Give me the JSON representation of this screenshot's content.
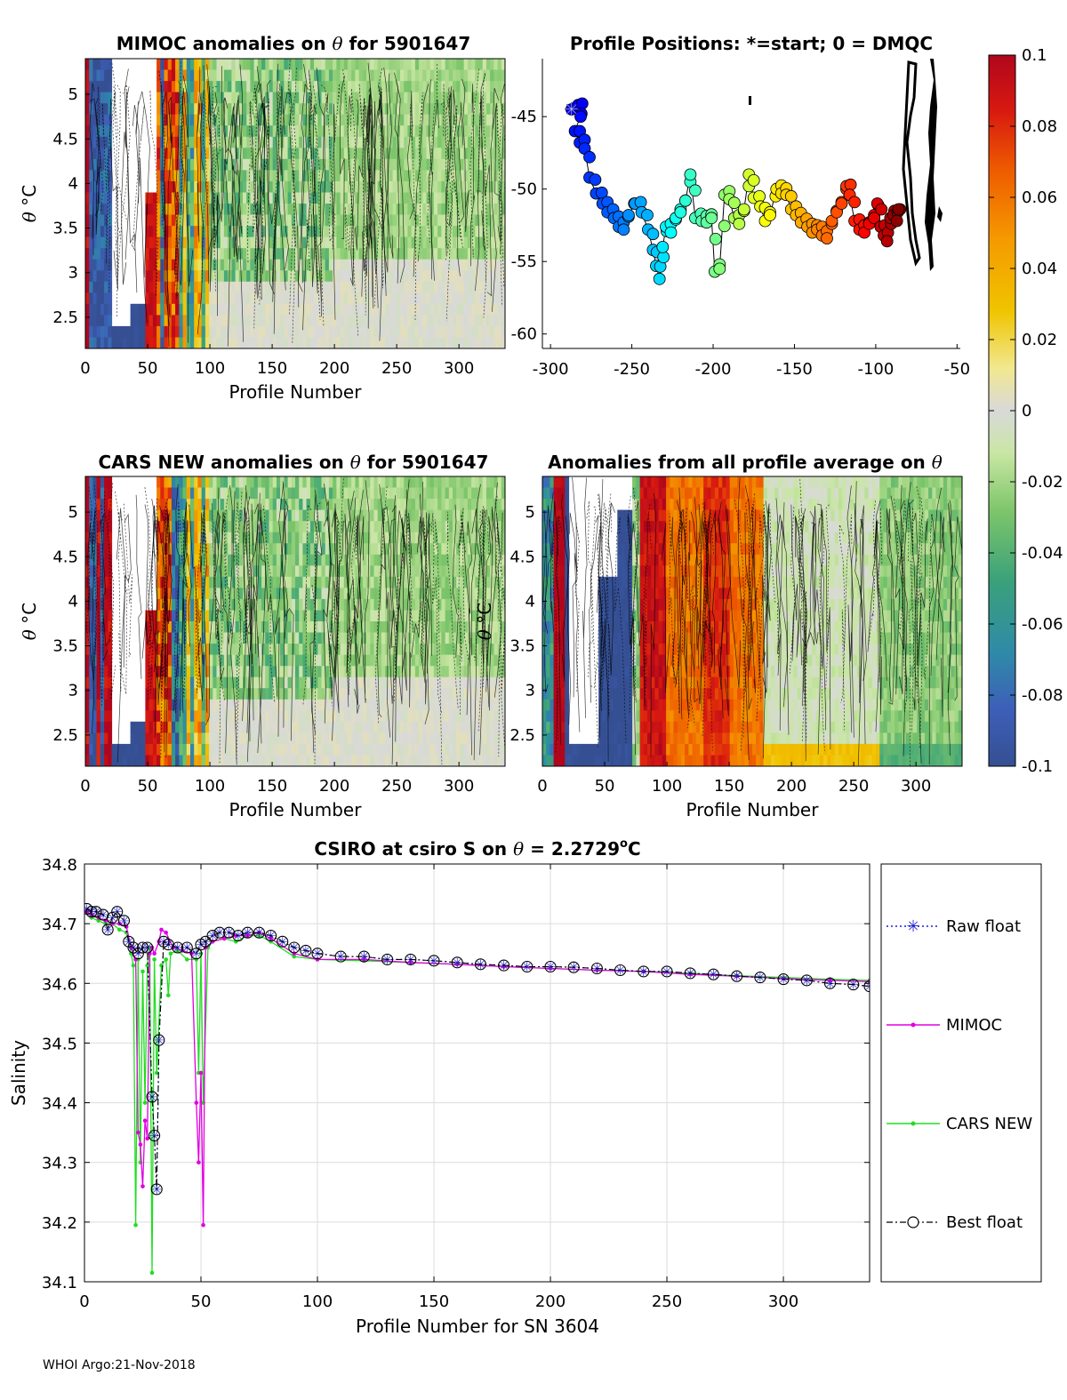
{
  "footer": "WHOI Argo:21-Nov-2018",
  "panels": {
    "mimoc": {
      "title_a": "MIMOC anomalies on ",
      "title_sym": "θ",
      "title_b": "  for 5901647",
      "ylabel_sym": "θ",
      "ylabel_unit": " °C",
      "xlabel": "Profile Number",
      "xticks": [
        "0",
        "50",
        "100",
        "150",
        "200",
        "250",
        "300"
      ],
      "yticks": [
        "5",
        "4.5",
        "4",
        "3.5",
        "3",
        "2.5"
      ]
    },
    "positions": {
      "title": "Profile Positions: *=start; 0 = DMQC",
      "xticks": [
        "-300",
        "-250",
        "-200",
        "-150",
        "-100",
        "-50"
      ],
      "yticks": [
        "-45",
        "-50",
        "-55",
        "-60"
      ]
    },
    "cars": {
      "title_a": "CARS NEW anomalies on ",
      "title_sym": "θ",
      "title_b": " for 5901647",
      "ylabel_sym": "θ",
      "ylabel_unit": " °C",
      "xlabel": "Profile Number",
      "xticks": [
        "0",
        "50",
        "100",
        "150",
        "200",
        "250",
        "300"
      ],
      "yticks": [
        "5",
        "4.5",
        "4",
        "3.5",
        "3",
        "2.5"
      ]
    },
    "allavg": {
      "title_a": "Anomalies from all profile average on ",
      "title_sym": "θ",
      "ylabel_sym": "θ",
      "ylabel_unit": " °C",
      "xlabel": "Profile Number",
      "xticks": [
        "0",
        "50",
        "100",
        "150",
        "200",
        "250",
        "300"
      ],
      "yticks": [
        "5",
        "4.5",
        "4",
        "3.5",
        "3",
        "2.5"
      ]
    },
    "colorbar": {
      "ticks": [
        "0.1",
        "0.08",
        "0.06",
        "0.04",
        "0.02",
        "0",
        "-0.02",
        "-0.04",
        "-0.06",
        "-0.08",
        "-0.1"
      ]
    },
    "salinity": {
      "title_a": "CSIRO at csiro S on ",
      "title_sym": "θ",
      "title_b": " = 2.2729",
      "title_sup": "o",
      "title_c": "C",
      "xlabel": "Profile Number for SN 3604",
      "ylabel": "Salinity",
      "xticks": [
        "0",
        "50",
        "100",
        "150",
        "200",
        "250",
        "300"
      ],
      "yticks": [
        "34.8",
        "34.7",
        "34.6",
        "34.5",
        "34.4",
        "34.3",
        "34.2",
        "34.1"
      ],
      "legend": [
        "Raw float",
        "MIMOC",
        "CARS NEW",
        "Best float"
      ]
    }
  },
  "chart_data": [
    {
      "type": "heatmap",
      "title": "MIMOC anomalies on θ for 5901647",
      "xlabel": "Profile Number",
      "ylabel": "θ °C",
      "xlim": [
        0,
        337
      ],
      "ylim": [
        2.15,
        5.4
      ],
      "color_range": [
        -0.1,
        0.1
      ],
      "note": "Theta-level temperature anomalies vs MIMOC climatology with black contours; strong positive/negative anomalies for profiles 0-80, near-zero to slightly negative after 100"
    },
    {
      "type": "scatter",
      "title": "Profile Positions: *=start; 0 = DMQC",
      "xlim": [
        -305,
        -48
      ],
      "ylim": [
        -61,
        -41
      ],
      "start": [
        -287,
        -44.5
      ],
      "positions": [
        [
          -287,
          -44.5
        ],
        [
          -283,
          -44.2
        ],
        [
          -281,
          -44.8
        ],
        [
          -285,
          -46.0
        ],
        [
          -282,
          -46.8
        ],
        [
          -279,
          -47.2
        ],
        [
          -276,
          -49.2
        ],
        [
          -272,
          -50.3
        ],
        [
          -268,
          -51.0
        ],
        [
          -265,
          -51.6
        ],
        [
          -261,
          -52.0
        ],
        [
          -258,
          -52.6
        ],
        [
          -255,
          -52.8
        ],
        [
          -252,
          -51.8
        ],
        [
          -248,
          -51.0
        ],
        [
          -244,
          -51.6
        ],
        [
          -240,
          -52.8
        ],
        [
          -237,
          -54.2
        ],
        [
          -235,
          -55.3
        ],
        [
          -233,
          -56.2
        ],
        [
          -231,
          -54.0
        ],
        [
          -229,
          -52.6
        ],
        [
          -226,
          -53.0
        ],
        [
          -223,
          -52.0
        ],
        [
          -220,
          -51.6
        ],
        [
          -217,
          -50.8
        ],
        [
          -214,
          -49.0
        ],
        [
          -211,
          -52.0
        ],
        [
          -207,
          -52.2
        ],
        [
          -204,
          -52.3
        ],
        [
          -201,
          -52.0
        ],
        [
          -199,
          -55.7
        ],
        [
          -196,
          -55.5
        ],
        [
          -193,
          -50.4
        ],
        [
          -190,
          -50.7
        ],
        [
          -187,
          -52.0
        ],
        [
          -184,
          -52.4
        ],
        [
          -181,
          -51.4
        ],
        [
          -178,
          -49.0
        ],
        [
          -175,
          -50.6
        ],
        [
          -171,
          -51.2
        ],
        [
          -168,
          -52.2
        ],
        [
          -165,
          -51.8
        ],
        [
          -161,
          -50.0
        ],
        [
          -158,
          -50.3
        ],
        [
          -155,
          -50.4
        ],
        [
          -152,
          -51.4
        ],
        [
          -149,
          -51.8
        ],
        [
          -146,
          -52.3
        ],
        [
          -142,
          -52.6
        ],
        [
          -139,
          -53.0
        ],
        [
          -136,
          -52.8
        ],
        [
          -133,
          -53.2
        ],
        [
          -130,
          -53.4
        ],
        [
          -127,
          -52.2
        ],
        [
          -124,
          -51.6
        ],
        [
          -121,
          -51.0
        ],
        [
          -118,
          -49.8
        ],
        [
          -116,
          -50.4
        ],
        [
          -113,
          -52.2
        ],
        [
          -110,
          -52.8
        ],
        [
          -107,
          -53.0
        ],
        [
          -104,
          -52.4
        ],
        [
          -101,
          -52.0
        ],
        [
          -99,
          -51.0
        ],
        [
          -97,
          -52.6
        ],
        [
          -95,
          -53.2
        ],
        [
          -93,
          -53.6
        ],
        [
          -91,
          -52.0
        ],
        [
          -89,
          -51.8
        ],
        [
          -87,
          -52.2
        ],
        [
          -86,
          -51.4
        ]
      ]
    },
    {
      "type": "heatmap",
      "title": "CARS NEW anomalies on θ for 5901647",
      "xlabel": "Profile Number",
      "ylabel": "θ °C",
      "xlim": [
        0,
        337
      ],
      "ylim": [
        2.15,
        5.4
      ],
      "color_range": [
        -0.1,
        0.1
      ],
      "note": "Similar to MIMOC panel"
    },
    {
      "type": "heatmap",
      "title": "Anomalies from all profile average on θ",
      "xlabel": "Profile Number",
      "ylabel": "θ °C",
      "xlim": [
        0,
        337
      ],
      "ylim": [
        2.15,
        5.4
      ],
      "color_range": [
        -0.1,
        0.1
      ],
      "note": "Negative (blue) anomalies profiles 20-72, strong positive (red/orange) anomalies profiles 75-175, near zero / slightly negative after 180"
    },
    {
      "type": "line",
      "title": "CSIRO at csiro S on θ = 2.2729 oC",
      "xlabel": "Profile Number for SN 3604",
      "ylabel": "Salinity",
      "xlim": [
        0,
        337
      ],
      "ylim": [
        34.1,
        34.8
      ],
      "series": [
        {
          "name": "Best float",
          "x": [
            1,
            3,
            5,
            8,
            10,
            12,
            14,
            17,
            19,
            21,
            23,
            25,
            27,
            29,
            30,
            31,
            32,
            34,
            36,
            40,
            44,
            48,
            50,
            52,
            55,
            58,
            62,
            66,
            70,
            75,
            80,
            85,
            90,
            95,
            100,
            110,
            120,
            130,
            140,
            150,
            160,
            170,
            180,
            190,
            200,
            210,
            220,
            230,
            240,
            250,
            260,
            270,
            280,
            290,
            300,
            310,
            320,
            330,
            337
          ],
          "y": [
            34.725,
            34.72,
            34.72,
            34.715,
            34.69,
            34.71,
            34.72,
            34.705,
            34.67,
            34.66,
            34.65,
            34.66,
            34.66,
            34.41,
            34.345,
            34.255,
            34.505,
            34.67,
            34.665,
            34.66,
            34.66,
            34.65,
            34.665,
            34.67,
            34.68,
            34.685,
            34.685,
            34.68,
            34.685,
            34.685,
            34.68,
            34.67,
            34.66,
            34.655,
            34.65,
            34.645,
            34.645,
            34.64,
            34.64,
            34.638,
            34.635,
            34.632,
            34.63,
            34.628,
            34.628,
            34.627,
            34.625,
            34.622,
            34.62,
            34.62,
            34.617,
            34.615,
            34.612,
            34.61,
            34.607,
            34.605,
            34.6,
            34.598,
            34.595
          ]
        },
        {
          "name": "Raw float",
          "x": [
            1,
            3,
            5,
            8,
            10,
            12,
            14,
            17,
            19,
            21,
            23,
            25,
            27,
            29,
            30,
            31,
            32,
            34,
            36,
            40,
            44,
            48,
            50,
            52,
            55,
            58,
            62,
            66,
            70,
            75,
            80,
            85,
            90,
            95,
            100,
            110,
            120,
            130,
            140,
            150,
            160,
            170,
            180,
            190,
            200,
            210,
            220,
            230,
            240,
            250,
            260,
            270,
            280,
            290,
            300,
            310,
            320,
            330,
            337
          ],
          "y": [
            34.725,
            34.72,
            34.72,
            34.715,
            34.69,
            34.71,
            34.72,
            34.705,
            34.67,
            34.66,
            34.65,
            34.66,
            34.66,
            34.41,
            34.345,
            34.255,
            34.505,
            34.67,
            34.665,
            34.66,
            34.66,
            34.65,
            34.665,
            34.67,
            34.68,
            34.685,
            34.685,
            34.68,
            34.685,
            34.685,
            34.68,
            34.67,
            34.66,
            34.655,
            34.65,
            34.645,
            34.645,
            34.64,
            34.64,
            34.638,
            34.635,
            34.632,
            34.63,
            34.628,
            34.628,
            34.627,
            34.625,
            34.622,
            34.62,
            34.62,
            34.617,
            34.615,
            34.612,
            34.61,
            34.607,
            34.605,
            34.6,
            34.598,
            34.595
          ]
        },
        {
          "name": "MIMOC",
          "x": [
            1,
            3,
            6,
            9,
            12,
            15,
            18,
            20,
            22,
            23,
            24,
            25,
            26,
            27,
            28,
            29,
            30,
            32,
            33,
            35,
            38,
            42,
            46,
            48,
            49,
            50,
            51,
            52,
            55,
            60,
            65,
            70,
            75,
            80,
            90,
            100,
            120,
            140,
            160,
            180,
            200,
            220,
            240,
            260,
            280,
            300,
            320,
            337
          ],
          "y": [
            34.72,
            34.715,
            34.71,
            34.705,
            34.7,
            34.7,
            34.695,
            34.66,
            34.64,
            34.35,
            34.33,
            34.26,
            34.37,
            34.34,
            34.65,
            34.66,
            34.65,
            34.67,
            34.69,
            34.685,
            34.66,
            34.655,
            34.65,
            34.4,
            34.3,
            34.45,
            34.195,
            34.66,
            34.67,
            34.675,
            34.68,
            34.68,
            34.685,
            34.675,
            34.65,
            34.64,
            34.64,
            34.635,
            34.632,
            34.628,
            34.625,
            34.622,
            34.62,
            34.615,
            34.612,
            34.608,
            34.605,
            34.603
          ]
        },
        {
          "name": "CARS NEW",
          "x": [
            1,
            3,
            6,
            9,
            12,
            15,
            18,
            20,
            21,
            22,
            23,
            24,
            25,
            26,
            27,
            28,
            29,
            30,
            31,
            33,
            35,
            36,
            37,
            40,
            44,
            48,
            49,
            50,
            51,
            53,
            55,
            60,
            65,
            70,
            75,
            80,
            90,
            100,
            120,
            140,
            160,
            180,
            200,
            220,
            240,
            260,
            280,
            300,
            320,
            337
          ],
          "y": [
            34.72,
            34.71,
            34.705,
            34.7,
            34.7,
            34.69,
            34.685,
            34.65,
            34.63,
            34.195,
            34.64,
            34.3,
            34.62,
            34.4,
            34.63,
            34.66,
            34.115,
            34.64,
            34.45,
            34.63,
            34.64,
            34.58,
            34.65,
            34.655,
            34.64,
            34.64,
            34.45,
            34.65,
            34.4,
            34.66,
            34.67,
            34.675,
            34.67,
            34.68,
            34.68,
            34.67,
            34.645,
            34.64,
            34.638,
            34.635,
            34.632,
            34.628,
            34.625,
            34.622,
            34.62,
            34.617,
            34.613,
            34.61,
            34.607,
            34.605
          ]
        }
      ]
    }
  ]
}
